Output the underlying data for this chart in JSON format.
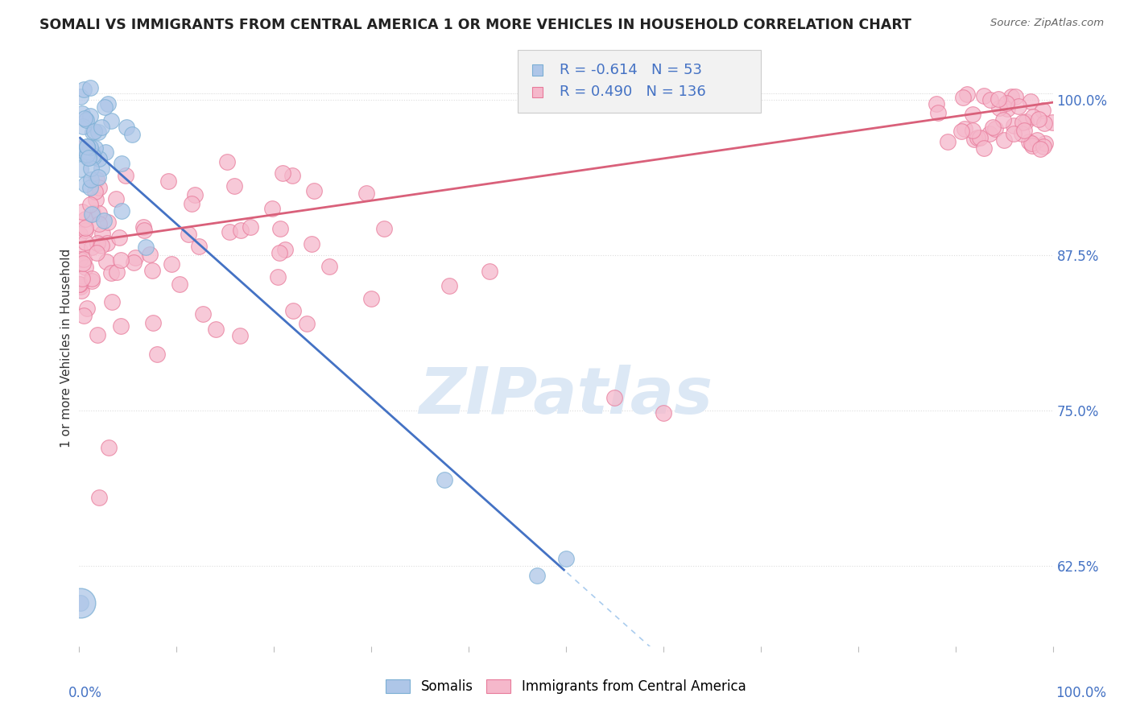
{
  "title": "SOMALI VS IMMIGRANTS FROM CENTRAL AMERICA 1 OR MORE VEHICLES IN HOUSEHOLD CORRELATION CHART",
  "source": "Source: ZipAtlas.com",
  "ylabel": "1 or more Vehicles in Household",
  "legend_R_somali": "-0.614",
  "legend_N_somali": "53",
  "legend_R_central": "0.490",
  "legend_N_central": "136",
  "somali_color": "#aec6e8",
  "central_color": "#f5b8cb",
  "somali_edge": "#7bafd4",
  "central_edge": "#e87a9a",
  "trend_somali_color": "#4472c4",
  "trend_central_color": "#d9607a",
  "trend_dash_color": "#aaccee",
  "watermark_color": "#dce8f5",
  "background_color": "#ffffff",
  "grid_color": "#dddddd",
  "title_color": "#222222",
  "axis_color": "#4472c4",
  "xlim": [
    0.0,
    1.0
  ],
  "ylim": [
    0.56,
    1.04
  ],
  "yticks": [
    0.625,
    0.75,
    0.875,
    1.0
  ],
  "ytick_labels": [
    "62.5%",
    "75.0%",
    "87.5%",
    "100.0%"
  ],
  "xtick_left": "0.0%",
  "xtick_right": "100.0%"
}
